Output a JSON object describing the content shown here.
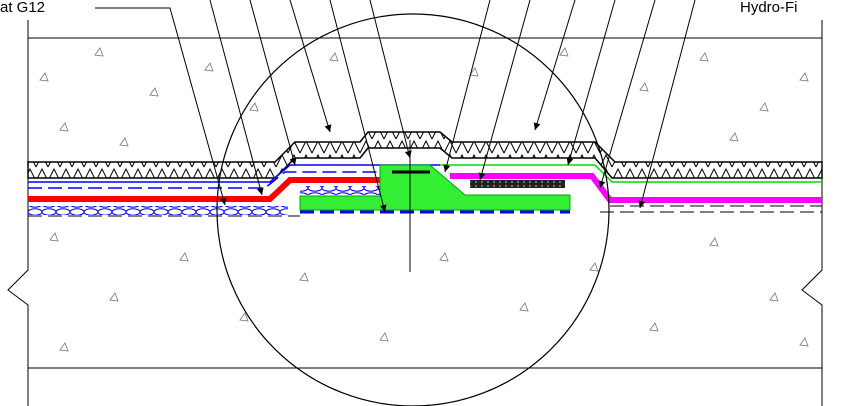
{
  "labels": {
    "left": "at G12",
    "right": "Hydro-Fi"
  }
}
